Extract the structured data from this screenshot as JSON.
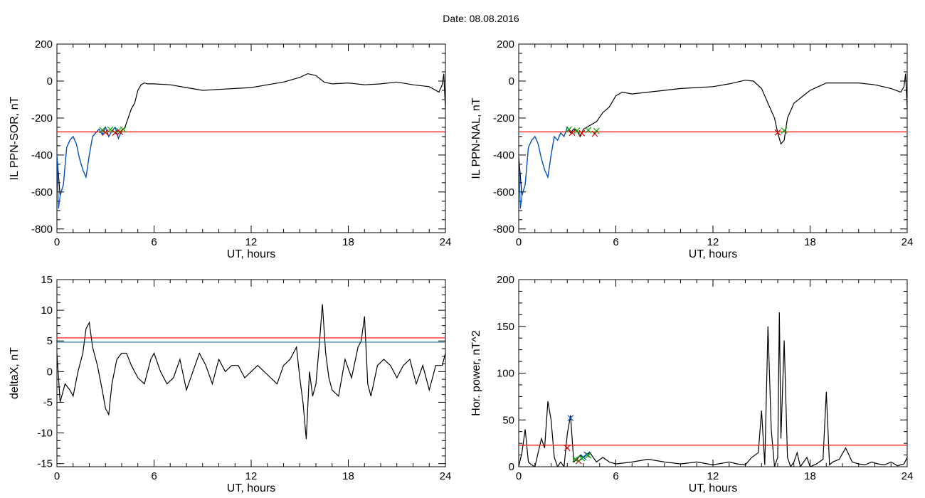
{
  "page": {
    "title": "Date:  08.08.2016"
  },
  "chart_data": [
    {
      "type": "line",
      "xlabel": "UT, hours",
      "ylabel": "IL PPN-SOR, nT",
      "xlim": [
        0,
        24
      ],
      "ylim": [
        -820,
        200
      ],
      "xticks": [
        0,
        6,
        12,
        18,
        24
      ],
      "yticks": [
        -800,
        -600,
        -400,
        -200,
        0,
        200
      ],
      "series": [
        {
          "color": "#000000",
          "x": [
            0,
            0.2,
            0.4,
            0.6,
            0.8,
            1.0,
            1.2,
            1.4,
            1.6,
            1.8,
            2.0,
            2.2,
            2.4,
            2.6,
            2.8,
            3.0,
            3.2,
            3.4,
            3.6,
            3.8,
            4.0,
            4.2,
            4.4,
            4.6,
            4.8,
            5.0,
            5.2,
            5.4,
            5.6,
            6,
            7,
            8,
            9,
            10,
            11,
            12,
            13,
            14,
            15,
            15.5,
            16,
            16.5,
            17,
            18,
            19,
            20,
            21,
            22,
            23,
            23.6,
            23.8,
            23.9,
            24
          ],
          "y": [
            -400,
            -620,
            -560,
            -360,
            -320,
            -300,
            -340,
            -420,
            -480,
            -520,
            -400,
            -300,
            -280,
            -260,
            -290,
            -250,
            -300,
            -270,
            -250,
            -310,
            -270,
            -250,
            -200,
            -150,
            -120,
            -50,
            -20,
            -10,
            -15,
            -15,
            -20,
            -35,
            -50,
            -45,
            -40,
            -35,
            -20,
            -5,
            20,
            40,
            30,
            -5,
            -15,
            -10,
            -20,
            -15,
            -5,
            -20,
            -30,
            -60,
            -20,
            40,
            -150
          ]
        },
        {
          "color": "#0055cc",
          "x": [
            0,
            0.1,
            0.2,
            0.4,
            0.6,
            0.8,
            1.0,
            1.2,
            1.4,
            1.6,
            1.8,
            2.0,
            2.2,
            2.4,
            2.6,
            2.8,
            3.0,
            3.2,
            3.4,
            3.6,
            3.8,
            4.0
          ],
          "y": [
            -400,
            -690,
            -620,
            -560,
            -360,
            -320,
            -300,
            -340,
            -420,
            -480,
            -520,
            -400,
            -300,
            -280,
            -260,
            -290,
            -250,
            -300,
            -270,
            -250,
            -310,
            -270
          ]
        }
      ],
      "threshold": {
        "y": -275,
        "color": "#ff0000"
      },
      "markers": [
        {
          "symbol": "x",
          "color": "#00aa00",
          "x": [
            2.8,
            3.3,
            3.8,
            4.1
          ],
          "y": [
            -265,
            -262,
            -268,
            -262
          ]
        },
        {
          "symbol": "x",
          "color": "#cc0000",
          "x": [
            3.0,
            3.6,
            3.9
          ],
          "y": [
            -278,
            -280,
            -275
          ]
        }
      ]
    },
    {
      "type": "line",
      "xlabel": "UT, hours",
      "ylabel": "IL PPN-NAL, nT",
      "xlim": [
        0,
        24
      ],
      "ylim": [
        -820,
        200
      ],
      "xticks": [
        0,
        6,
        12,
        18,
        24
      ],
      "yticks": [
        -800,
        -600,
        -400,
        -200,
        0,
        200
      ],
      "series": [
        {
          "color": "#000000",
          "x": [
            0,
            0.2,
            0.4,
            0.6,
            0.8,
            1.0,
            1.2,
            1.4,
            1.6,
            1.8,
            2.0,
            2.2,
            2.4,
            2.6,
            2.8,
            3.0,
            3.2,
            3.4,
            3.6,
            3.8,
            4.0,
            4.4,
            4.8,
            5.2,
            5.6,
            6.0,
            6.4,
            7,
            8,
            9,
            10,
            11,
            12,
            13,
            14,
            14.5,
            15,
            15.4,
            15.8,
            16.0,
            16.2,
            16.4,
            16.6,
            17,
            18,
            19,
            20,
            21,
            22,
            23,
            23.6,
            23.8,
            23.9,
            24
          ],
          "y": [
            -400,
            -620,
            -560,
            -360,
            -320,
            -300,
            -340,
            -420,
            -480,
            -520,
            -400,
            -300,
            -320,
            -280,
            -300,
            -250,
            -280,
            -260,
            -270,
            -300,
            -260,
            -240,
            -220,
            -170,
            -140,
            -80,
            -60,
            -70,
            -60,
            -50,
            -40,
            -35,
            -30,
            -15,
            5,
            0,
            -40,
            -120,
            -200,
            -280,
            -340,
            -320,
            -200,
            -120,
            -50,
            -10,
            -10,
            -10,
            -20,
            -40,
            -60,
            -30,
            40,
            -150
          ]
        },
        {
          "color": "#0055cc",
          "x": [
            0,
            0.1,
            0.2,
            0.4,
            0.6,
            0.8,
            1.0,
            1.2,
            1.4,
            1.6,
            1.8,
            2.0,
            2.2,
            2.4,
            2.6,
            2.8,
            3.0
          ],
          "y": [
            -400,
            -690,
            -620,
            -560,
            -360,
            -320,
            -300,
            -340,
            -420,
            -480,
            -520,
            -400,
            -300,
            -320,
            -280,
            -300,
            -250
          ]
        }
      ],
      "threshold": {
        "y": -275,
        "color": "#ff0000"
      },
      "markers": [
        {
          "symbol": "x",
          "color": "#00aa00",
          "x": [
            3.1,
            3.6,
            4.3,
            4.8,
            16.4
          ],
          "y": [
            -262,
            -268,
            -265,
            -270,
            -268
          ]
        },
        {
          "symbol": "x",
          "color": "#cc0000",
          "x": [
            3.3,
            3.9,
            4.7,
            16.0
          ],
          "y": [
            -280,
            -282,
            -285,
            -278
          ]
        }
      ]
    },
    {
      "type": "line",
      "xlabel": "UT, hours",
      "ylabel": "deltaX, nT",
      "xlim": [
        0,
        24
      ],
      "ylim": [
        -15.5,
        15
      ],
      "xticks": [
        0,
        6,
        12,
        18,
        24
      ],
      "yticks": [
        -15,
        -10,
        -5,
        0,
        5,
        10,
        15
      ],
      "series": [
        {
          "color": "#000000",
          "x": [
            0,
            0.2,
            0.5,
            0.8,
            1.0,
            1.3,
            1.6,
            1.8,
            2.0,
            2.2,
            2.5,
            2.8,
            3.0,
            3.2,
            3.4,
            3.7,
            4.0,
            4.3,
            4.6,
            5.0,
            5.4,
            5.8,
            6.0,
            6.4,
            6.8,
            7.2,
            7.6,
            8.0,
            8.4,
            8.8,
            9.2,
            9.6,
            10,
            10.4,
            10.8,
            11.2,
            11.6,
            12,
            12.4,
            12.8,
            13.2,
            13.6,
            14,
            14.4,
            14.8,
            15.0,
            15.2,
            15.4,
            15.6,
            15.8,
            16.0,
            16.2,
            16.4,
            16.6,
            16.8,
            17.0,
            17.4,
            17.8,
            18.2,
            18.6,
            18.8,
            19.0,
            19.2,
            19.4,
            19.8,
            20.2,
            20.6,
            21,
            21.4,
            21.8,
            22.2,
            22.6,
            23,
            23.4,
            23.8,
            24
          ],
          "y": [
            3,
            -5,
            -2,
            -3,
            -4,
            0,
            3,
            7,
            8,
            4,
            1,
            -3,
            -6,
            -7,
            -2,
            2,
            3,
            3,
            1,
            -1,
            -2,
            2,
            3,
            0,
            -2,
            -1,
            2,
            -3,
            0,
            3,
            1,
            -2,
            2,
            0,
            1,
            1,
            -1,
            0,
            1,
            0,
            -1,
            -2,
            1,
            2,
            4,
            -1,
            -5,
            -11,
            0,
            -4,
            -2,
            4,
            11,
            3,
            -1,
            -3,
            -4,
            2,
            -1,
            4,
            5,
            9,
            -2,
            -4,
            1,
            2,
            1,
            -1,
            1,
            2,
            -2,
            1,
            -3,
            1,
            1,
            3
          ]
        }
      ],
      "threshold_lines": [
        {
          "y": 5.5,
          "color": "#ff0000"
        },
        {
          "y": 4.8,
          "color": "#1b6f9a"
        }
      ]
    },
    {
      "type": "line",
      "xlabel": "UT, hours",
      "ylabel": "Hor. power, nT^2",
      "xlim": [
        0,
        24
      ],
      "ylim": [
        0,
        200
      ],
      "xticks": [
        0,
        6,
        12,
        18,
        24
      ],
      "yticks": [
        0,
        50,
        100,
        150,
        200
      ],
      "series": [
        {
          "color": "#000000",
          "x": [
            0,
            0.2,
            0.4,
            0.6,
            0.8,
            1.0,
            1.2,
            1.4,
            1.6,
            1.8,
            2.0,
            2.2,
            2.4,
            2.6,
            2.8,
            3.0,
            3.2,
            3.4,
            3.6,
            3.8,
            4.0,
            4.4,
            4.8,
            5.2,
            5.6,
            6,
            7,
            8,
            9,
            10,
            11,
            12,
            13,
            13.5,
            14,
            14.4,
            14.8,
            15.0,
            15.2,
            15.4,
            15.6,
            15.8,
            16.0,
            16.1,
            16.2,
            16.4,
            16.6,
            16.8,
            17.0,
            17.2,
            17.4,
            17.6,
            17.8,
            18,
            18.4,
            18.8,
            19.0,
            19.2,
            19.4,
            19.8,
            20.2,
            20.6,
            21,
            21.4,
            21.8,
            22.2,
            22.6,
            23,
            23.4,
            23.8,
            24
          ],
          "y": [
            0,
            15,
            40,
            5,
            2,
            0,
            15,
            30,
            20,
            70,
            50,
            10,
            0,
            5,
            0,
            35,
            55,
            5,
            8,
            12,
            10,
            15,
            5,
            10,
            5,
            3,
            5,
            8,
            5,
            3,
            5,
            2,
            5,
            3,
            2,
            10,
            15,
            60,
            2,
            150,
            40,
            0,
            10,
            165,
            30,
            135,
            10,
            0,
            5,
            15,
            0,
            5,
            10,
            0,
            3,
            8,
            80,
            2,
            5,
            8,
            20,
            5,
            3,
            2,
            5,
            3,
            2,
            5,
            1,
            3,
            10
          ]
        }
      ],
      "threshold": {
        "y": 23,
        "color": "#ff0000"
      },
      "markers": [
        {
          "symbol": "x",
          "color": "#0055cc",
          "x": [
            3.2,
            4.0,
            4.2
          ],
          "y": [
            52,
            10,
            13
          ]
        },
        {
          "symbol": "x",
          "color": "#cc0000",
          "x": [
            3.0,
            3.7
          ],
          "y": [
            20,
            6
          ]
        },
        {
          "symbol": "x",
          "color": "#00aa00",
          "x": [
            3.5,
            3.9,
            4.3
          ],
          "y": [
            8,
            9,
            12
          ]
        }
      ]
    }
  ]
}
